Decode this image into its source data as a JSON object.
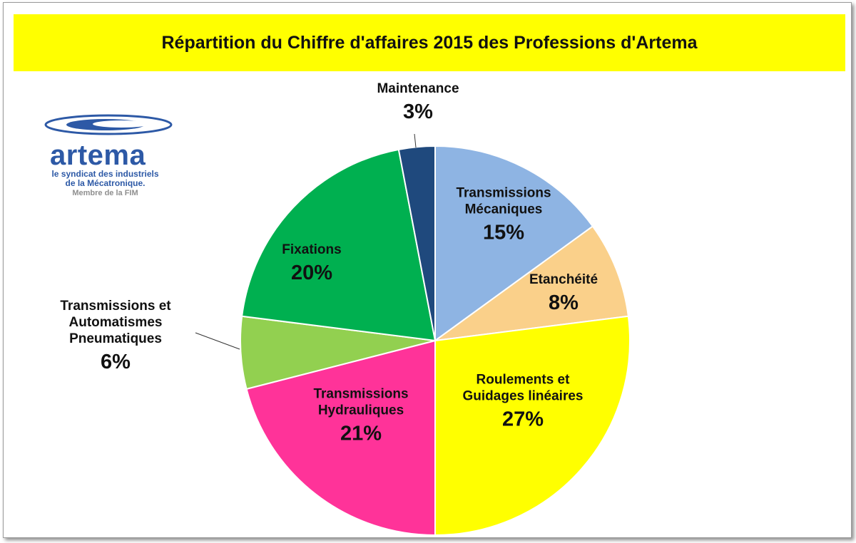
{
  "title": "Répartition du Chiffre d'affaires 2015  des Professions d'Artema",
  "logo": {
    "name": "artema",
    "line1": "le syndicat des industriels",
    "line2": "de la Mécatronique.",
    "line3": "Membre de la FIM"
  },
  "chart_data": {
    "type": "pie",
    "slices": [
      {
        "label_lines": [
          "Transmissions",
          "Mécaniques"
        ],
        "value": 15,
        "value_label": "15%",
        "color": "#8eb4e3"
      },
      {
        "label_lines": [
          "Etanchéité"
        ],
        "value": 8,
        "value_label": "8%",
        "color": "#fad08a"
      },
      {
        "label_lines": [
          "Roulements et",
          "Guidages linéaires"
        ],
        "value": 27,
        "value_label": "27%",
        "color": "#ffff00"
      },
      {
        "label_lines": [
          "Transmissions",
          "Hydrauliques"
        ],
        "value": 21,
        "value_label": "21%",
        "color": "#ff3399"
      },
      {
        "label_lines": [
          "Transmissions  et",
          "Automatismes",
          "Pneumatiques"
        ],
        "value": 6,
        "value_label": "6%",
        "color": "#92d050"
      },
      {
        "label_lines": [
          "Fixations"
        ],
        "value": 20,
        "value_label": "20%",
        "color": "#00b050"
      },
      {
        "label_lines": [
          "Maintenance"
        ],
        "value": 3,
        "value_label": "3%",
        "color": "#1f497d"
      }
    ]
  }
}
